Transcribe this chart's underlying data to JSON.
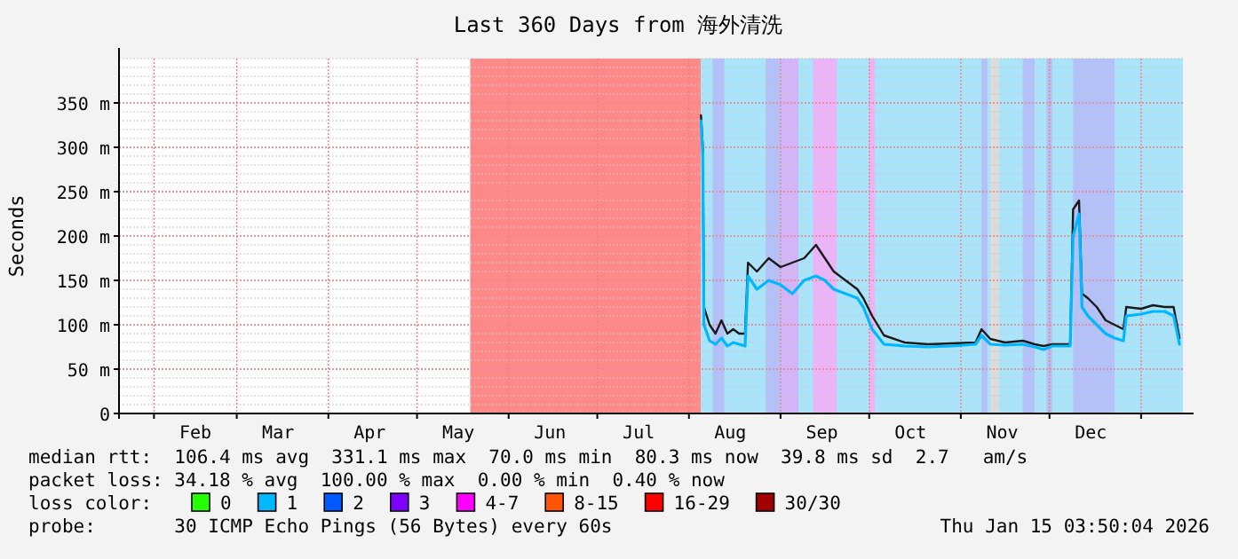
{
  "chart_data": {
    "type": "line",
    "title": "Last 360 Days from 海外清洗",
    "ylabel": "Seconds",
    "xlim": [
      "2025-01-20T03:50",
      "2026-01-15T03:50"
    ],
    "xticks": [
      {
        "value": "2025-02-01",
        "label": null
      },
      {
        "value": "2025-03-01",
        "label": null
      },
      {
        "value": "2025-04-01",
        "label": null
      },
      {
        "value": "2025-05-01",
        "label": null
      },
      {
        "value": "2025-06-01",
        "label": null
      },
      {
        "value": "2025-07-01",
        "label": null
      },
      {
        "value": "2025-08-01",
        "label": null
      },
      {
        "value": "2025-09-01",
        "label": null
      },
      {
        "value": "2025-10-01",
        "label": null
      },
      {
        "value": "2025-11-01",
        "label": null
      },
      {
        "value": "2025-12-01",
        "label": null
      },
      {
        "value": "2026-01-01",
        "label": null
      },
      {
        "value": "2025-02-15",
        "label": "Feb"
      },
      {
        "value": "2025-03-15",
        "label": "Mar"
      },
      {
        "value": "2025-04-15",
        "label": "Apr"
      },
      {
        "value": "2025-05-15",
        "label": "May"
      },
      {
        "value": "2025-06-15",
        "label": "Jun"
      },
      {
        "value": "2025-07-15",
        "label": "Jul"
      },
      {
        "value": "2025-08-15",
        "label": "Aug"
      },
      {
        "value": "2025-09-15",
        "label": "Sep"
      },
      {
        "value": "2025-10-15",
        "label": "Oct"
      },
      {
        "value": "2025-11-15",
        "label": "Nov"
      },
      {
        "value": "2025-12-15",
        "label": "Dec"
      }
    ],
    "ylim": [
      0,
      400
    ],
    "yticks": [
      0,
      {
        "value": 50,
        "label": "50 m"
      },
      {
        "value": 100,
        "label": "100 m"
      },
      {
        "value": 150,
        "label": "150 m"
      },
      {
        "value": 200,
        "label": "200 m"
      },
      {
        "value": 250,
        "label": "250 m"
      },
      {
        "value": 300,
        "label": "300 m"
      },
      {
        "value": 350,
        "label": "350 m"
      }
    ],
    "grid": true,
    "legend": "bottom",
    "legend_title": "loss color:",
    "bands": [
      {
        "axis": "x",
        "from": "2025-05-19",
        "to": "2025-08-05",
        "color": "#ff8888"
      },
      {
        "axis": "x",
        "from": "2025-08-05",
        "to": "2026-01-15T03:50",
        "color": "#aae4fa"
      },
      {
        "axis": "x",
        "from": "2025-08-09",
        "to": "2025-08-13",
        "color": "#b4c0f8"
      },
      {
        "axis": "x",
        "from": "2025-08-27",
        "to": "2025-09-01",
        "color": "#b4c0f8"
      },
      {
        "axis": "x",
        "from": "2025-09-01",
        "to": "2025-09-07",
        "color": "#d4b4f8"
      },
      {
        "axis": "x",
        "from": "2025-09-12",
        "to": "2025-09-20",
        "color": "#ecb4f8"
      },
      {
        "axis": "x",
        "from": "2025-10-01",
        "to": "2025-10-03",
        "color": "#ecb4f8"
      },
      {
        "axis": "x",
        "from": "2025-11-08",
        "to": "2025-11-10",
        "color": "#b4c0f8"
      },
      {
        "axis": "x",
        "from": "2025-11-11",
        "to": "2025-11-14",
        "color": "#dcdcdc"
      },
      {
        "axis": "x",
        "from": "2025-11-22",
        "to": "2025-11-26",
        "color": "#b4c0f8"
      },
      {
        "axis": "x",
        "from": "2025-11-30",
        "to": "2025-12-02",
        "color": "#b4c0f8"
      },
      {
        "axis": "x",
        "from": "2025-12-09",
        "to": "2025-12-23",
        "color": "#b4c0f8"
      }
    ],
    "x": [
      "2025-08-05T02:00",
      "2025-08-05T17:00",
      "2025-08-06T02:00",
      "2025-08-08",
      "2025-08-10",
      "2025-08-12",
      "2025-08-14",
      "2025-08-16",
      "2025-08-18",
      "2025-08-20",
      "2025-08-21",
      "2025-08-24",
      "2025-08-28",
      "2025-09-01",
      "2025-09-05",
      "2025-09-09",
      "2025-09-13",
      "2025-09-16",
      "2025-09-19",
      "2025-09-23",
      "2025-09-27",
      "2025-09-29",
      "2025-10-02",
      "2025-10-06",
      "2025-10-13",
      "2025-10-21",
      "2025-10-29",
      "2025-11-06",
      "2025-11-08",
      "2025-11-11",
      "2025-11-16",
      "2025-11-22",
      "2025-11-26",
      "2025-11-29",
      "2025-12-02",
      "2025-12-08",
      "2025-12-09",
      "2025-12-11",
      "2025-12-12",
      "2025-12-14",
      "2025-12-17",
      "2025-12-20",
      "2025-12-23",
      "2025-12-26",
      "2025-12-27",
      "2026-01-01",
      "2026-01-05",
      "2026-01-09",
      "2026-01-12",
      "2026-01-14"
    ],
    "series": [
      {
        "color": "#1a1a1a",
        "values": [
          336,
          300,
          120,
          100,
          90,
          105,
          90,
          95,
          90,
          90,
          170,
          160,
          175,
          165,
          170,
          175,
          190,
          175,
          160,
          150,
          140,
          130,
          110,
          88,
          80,
          78,
          79,
          80,
          95,
          84,
          80,
          82,
          78,
          76,
          78,
          78,
          230,
          240,
          135,
          130,
          120,
          105,
          100,
          95,
          120,
          118,
          122,
          120,
          120,
          85
        ]
      },
      {
        "name": "0",
        "color": "#26ff00",
        "values": [
          null,
          null,
          null,
          null,
          null,
          null,
          null,
          null,
          null,
          null,
          null,
          null,
          null,
          null,
          null,
          null,
          null,
          null,
          null,
          null,
          null,
          null,
          null,
          null,
          null,
          null,
          null,
          null,
          null,
          null,
          null,
          null,
          null,
          null,
          null,
          null,
          null,
          null,
          null,
          null,
          null,
          null,
          null,
          null,
          null,
          null,
          null,
          null,
          null,
          null
        ]
      },
      {
        "name": "1",
        "color": "#00b8ff",
        "values": [
          330,
          290,
          100,
          82,
          78,
          85,
          76,
          80,
          78,
          76,
          155,
          140,
          150,
          145,
          135,
          150,
          155,
          150,
          140,
          135,
          130,
          120,
          95,
          78,
          76,
          75,
          76,
          78,
          88,
          78,
          77,
          78,
          75,
          72,
          76,
          76,
          200,
          225,
          120,
          110,
          100,
          90,
          85,
          82,
          110,
          112,
          115,
          115,
          110,
          78
        ]
      },
      {
        "name": "2",
        "color": "#0059ff",
        "values": [
          null,
          null,
          null,
          null,
          null,
          null,
          null,
          null,
          null,
          null,
          null,
          null,
          null,
          null,
          null,
          null,
          null,
          null,
          null,
          null,
          null,
          null,
          null,
          null,
          null,
          null,
          null,
          null,
          null,
          null,
          null,
          null,
          null,
          null,
          null,
          null,
          null,
          null,
          null,
          null,
          null,
          null,
          null,
          null,
          null,
          null,
          null,
          null,
          null,
          null
        ]
      },
      {
        "name": "3",
        "color": "#7e00ff",
        "values": [
          null,
          null,
          null,
          null,
          null,
          null,
          null,
          null,
          null,
          null,
          null,
          null,
          null,
          null,
          null,
          null,
          null,
          null,
          null,
          null,
          null,
          null,
          null,
          null,
          null,
          null,
          null,
          null,
          null,
          null,
          null,
          null,
          null,
          null,
          null,
          null,
          null,
          null,
          null,
          null,
          null,
          null,
          null,
          null,
          null,
          null,
          null,
          null,
          null,
          null
        ]
      },
      {
        "name": "4-7",
        "color": "#ff00ff",
        "values": [
          null,
          null,
          null,
          null,
          null,
          null,
          null,
          null,
          null,
          null,
          null,
          null,
          null,
          null,
          null,
          null,
          null,
          null,
          null,
          null,
          null,
          null,
          null,
          null,
          null,
          null,
          null,
          null,
          null,
          null,
          null,
          null,
          null,
          null,
          null,
          null,
          null,
          null,
          null,
          null,
          null,
          null,
          null,
          null,
          null,
          null,
          null,
          null,
          null,
          null
        ]
      },
      {
        "name": "8-15",
        "color": "#ff5500",
        "values": [
          null,
          null,
          null,
          null,
          null,
          null,
          null,
          null,
          null,
          null,
          null,
          null,
          null,
          null,
          null,
          null,
          null,
          null,
          null,
          null,
          null,
          null,
          null,
          null,
          null,
          null,
          null,
          null,
          null,
          null,
          null,
          null,
          null,
          null,
          null,
          null,
          null,
          null,
          null,
          null,
          null,
          null,
          null,
          null,
          null,
          null,
          null,
          null,
          null,
          null
        ]
      },
      {
        "name": "16-29",
        "color": "#ff0000",
        "values": [
          null,
          null,
          null,
          null,
          null,
          null,
          null,
          null,
          null,
          null,
          null,
          null,
          null,
          null,
          null,
          null,
          null,
          null,
          null,
          null,
          null,
          null,
          null,
          null,
          null,
          null,
          null,
          null,
          null,
          null,
          null,
          null,
          null,
          null,
          null,
          null,
          null,
          null,
          null,
          null,
          null,
          null,
          null,
          null,
          null,
          null,
          null,
          null,
          null,
          null
        ]
      },
      {
        "name": "30/30",
        "color": "#a10000",
        "values": [
          null,
          null,
          null,
          null,
          null,
          null,
          null,
          null,
          null,
          null,
          null,
          null,
          null,
          null,
          null,
          null,
          null,
          null,
          null,
          null,
          null,
          null,
          null,
          null,
          null,
          null,
          null,
          null,
          null,
          null,
          null,
          null,
          null,
          null,
          null,
          null,
          null,
          null,
          null,
          null,
          null,
          null,
          null,
          null,
          null,
          null,
          null,
          null,
          null,
          null
        ]
      }
    ],
    "annotations": [
      "median rtt:  106.4 ms avg  331.1 ms max  70.0 ms min  80.3 ms now  39.8 ms sd  2.7   am/s",
      "packet loss: 34.18 % avg  100.00 % max  0.00 % min  0.40 % now",
      "probe:       30 ICMP Echo Pings (56 Bytes) every 60s",
      "Thu Jan 15 03:50:04 2026"
    ]
  }
}
